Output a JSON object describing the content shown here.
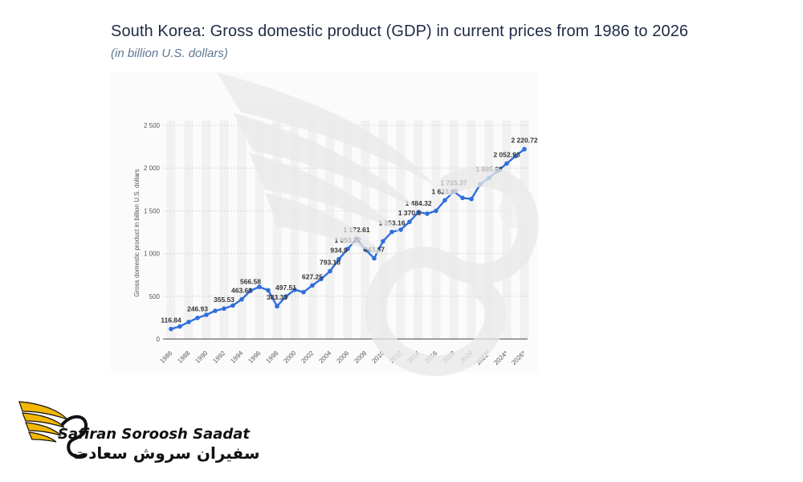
{
  "header": {
    "title": "South Korea: Gross domestic product (GDP) in current prices from 1986 to 2026",
    "subtitle": "(in billion U.S. dollars)"
  },
  "brand": {
    "name_en": "Safiran Soroosh Saadat",
    "name_fa": "سفیران سروش سعادت",
    "accent_color": "#f2b705"
  },
  "chart_data": {
    "type": "line",
    "ylabel": "Gross domestic product in billion U.S. dollars",
    "ylim": [
      0,
      2500
    ],
    "yticks": [
      0,
      500,
      1000,
      1500,
      2000,
      2500
    ],
    "ytick_labels": [
      "0",
      "500",
      "1 000",
      "1 500",
      "2 000",
      "2 500"
    ],
    "xtick_labels": [
      "1986",
      "1988",
      "1990",
      "1992",
      "1994",
      "1996",
      "1998",
      "2000",
      "2002",
      "2004",
      "2006",
      "2008",
      "2010",
      "2012",
      "2014",
      "2016",
      "2018",
      "2020",
      "2022*",
      "2024*",
      "2026*"
    ],
    "grid": true,
    "line_color": "#2f6fdb",
    "x": [
      1986,
      1987,
      1988,
      1989,
      1990,
      1991,
      1992,
      1993,
      1994,
      1995,
      1996,
      1997,
      1998,
      1999,
      2000,
      2001,
      2002,
      2003,
      2004,
      2005,
      2006,
      2007,
      2008,
      2009,
      2010,
      2011,
      2012,
      2013,
      2014,
      2015,
      2016,
      2017,
      2018,
      2019,
      2020,
      2021,
      2022,
      2023,
      2024,
      2025,
      2026
    ],
    "values": [
      116.84,
      147,
      199,
      246.93,
      283,
      330,
      355.53,
      392,
      463.62,
      566.58,
      610,
      570,
      383.33,
      497.51,
      576,
      548,
      627.25,
      702,
      793.18,
      934.9,
      1053.22,
      1172.61,
      1047,
      943.67,
      1144,
      1253.16,
      1278,
      1370.8,
      1484.32,
      1466,
      1500,
      1623.07,
      1725.37,
      1651,
      1638,
      1810,
      1885.68,
      1967,
      2052.93,
      2140,
      2220.72
    ],
    "data_labels": [
      {
        "x": 1986,
        "text": "116.84"
      },
      {
        "x": 1989,
        "text": "246.93"
      },
      {
        "x": 1992,
        "text": "355.53"
      },
      {
        "x": 1994,
        "text": "463.62"
      },
      {
        "x": 1995,
        "text": "566.58"
      },
      {
        "x": 1998,
        "text": "383.33"
      },
      {
        "x": 1999,
        "text": "497.51"
      },
      {
        "x": 2002,
        "text": "627.25"
      },
      {
        "x": 2004,
        "text": "793.18"
      },
      {
        "x": 2005,
        "text": "934.9"
      },
      {
        "x": 2006,
        "text": "1 053.22"
      },
      {
        "x": 2007,
        "text": "1 172.61"
      },
      {
        "x": 2009,
        "text": "943.67"
      },
      {
        "x": 2011,
        "text": "1 253.16"
      },
      {
        "x": 2013,
        "text": "1 370.8"
      },
      {
        "x": 2014,
        "text": "1 484.32"
      },
      {
        "x": 2017,
        "text": "1 623.07"
      },
      {
        "x": 2018,
        "text": "1 725.37"
      },
      {
        "x": 2022,
        "text": "1 885.68"
      },
      {
        "x": 2024,
        "text": "2 052.93"
      },
      {
        "x": 2026,
        "text": "2 220.72"
      }
    ]
  }
}
